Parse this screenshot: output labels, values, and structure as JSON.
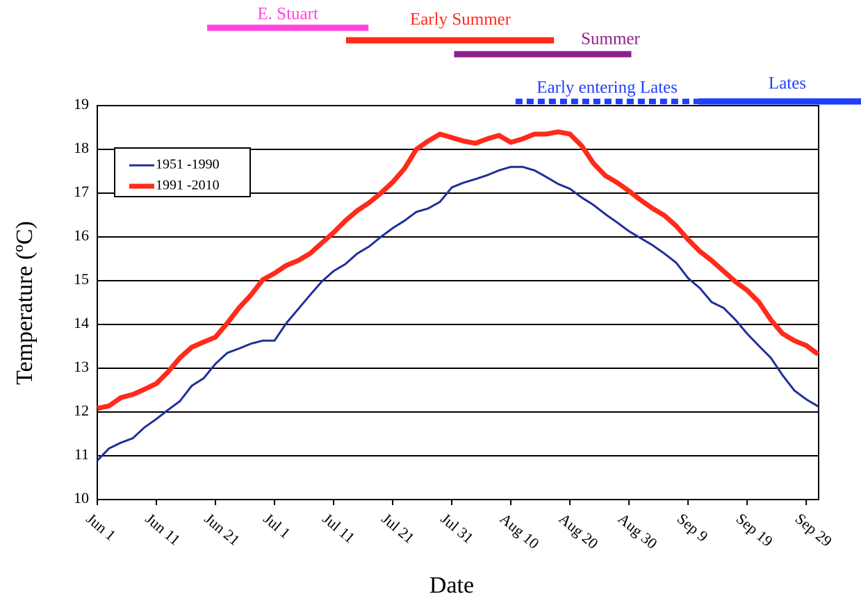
{
  "chart_data": {
    "type": "line",
    "x_label": "Date",
    "y_label": "Temperature  (ºC)",
    "x": [
      0,
      2,
      4,
      6,
      8,
      10,
      12,
      14,
      16,
      18,
      20,
      22,
      24,
      26,
      28,
      30,
      32,
      34,
      36,
      38,
      40,
      42,
      44,
      46,
      48,
      50,
      52,
      54,
      56,
      58,
      60,
      62,
      64,
      66,
      68,
      70,
      72,
      74,
      76,
      78,
      80,
      82,
      84,
      86,
      88,
      90,
      92,
      94,
      96,
      98,
      100,
      102,
      104,
      106,
      108,
      110,
      112,
      114,
      116,
      118,
      120,
      122
    ],
    "series": [
      {
        "name": "1951 -1990",
        "color": "#1f2f9a",
        "width": 3,
        "values": [
          10.89,
          11.17,
          11.3,
          11.4,
          11.65,
          11.84,
          12.05,
          12.25,
          12.6,
          12.77,
          13.1,
          13.35,
          13.45,
          13.56,
          13.63,
          13.63,
          14.03,
          14.35,
          14.67,
          14.98,
          15.22,
          15.38,
          15.62,
          15.78,
          16.0,
          16.2,
          16.37,
          16.57,
          16.65,
          16.8,
          17.13,
          17.24,
          17.32,
          17.41,
          17.52,
          17.6,
          17.6,
          17.52,
          17.37,
          17.21,
          17.1,
          16.9,
          16.73,
          16.52,
          16.33,
          16.13,
          15.97,
          15.81,
          15.62,
          15.41,
          15.06,
          14.83,
          14.51,
          14.38,
          14.11,
          13.79,
          13.51,
          13.24,
          12.84,
          12.49,
          12.29,
          12.13
        ]
      },
      {
        "name": "1991 -2010",
        "color": "#ff2a1a",
        "width": 7,
        "values": [
          12.08,
          12.14,
          12.33,
          12.4,
          12.52,
          12.65,
          12.92,
          13.24,
          13.48,
          13.6,
          13.71,
          14.03,
          14.38,
          14.67,
          15.02,
          15.17,
          15.35,
          15.46,
          15.62,
          15.86,
          16.1,
          16.37,
          16.6,
          16.78,
          17.0,
          17.25,
          17.56,
          18.0,
          18.19,
          18.35,
          18.27,
          18.19,
          18.14,
          18.24,
          18.32,
          18.16,
          18.24,
          18.35,
          18.35,
          18.4,
          18.35,
          18.08,
          17.68,
          17.4,
          17.24,
          17.05,
          16.84,
          16.65,
          16.49,
          16.25,
          15.94,
          15.67,
          15.46,
          15.22,
          14.98,
          14.78,
          14.51,
          14.11,
          13.79,
          13.63,
          13.52,
          13.32
        ]
      }
    ],
    "xlim": [
      0,
      122.1
    ],
    "xticks": [
      {
        "value": 0,
        "label": "Jun 1"
      },
      {
        "value": 10,
        "label": "Jun 11"
      },
      {
        "value": 20,
        "label": "Jun 21"
      },
      {
        "value": 30,
        "label": "Jul 1"
      },
      {
        "value": 40,
        "label": "Jul 11"
      },
      {
        "value": 50,
        "label": "Jul 21"
      },
      {
        "value": 60,
        "label": "Jul 31"
      },
      {
        "value": 70,
        "label": "Aug 10"
      },
      {
        "value": 80,
        "label": "Aug 20"
      },
      {
        "value": 90,
        "label": "Aug 30"
      },
      {
        "value": 100,
        "label": "Sep 9"
      },
      {
        "value": 110,
        "label": "Sep 19"
      },
      {
        "value": 120,
        "label": "Sep 29"
      }
    ],
    "ylim": [
      10,
      19
    ],
    "yticks": [
      10,
      11,
      12,
      13,
      14,
      15,
      16,
      17,
      18,
      19
    ],
    "grid": true,
    "legend": "upper left",
    "periods": [
      {
        "label": "E. Stuart",
        "start": 18.6,
        "end": 45.9,
        "color": "#ff44dd",
        "dashed": false
      },
      {
        "label": "Early Summer",
        "start": 42.1,
        "end": 77.3,
        "color": "#ff2a1a",
        "dashed": false
      },
      {
        "label": "Summer",
        "start": 60.4,
        "end": 90.4,
        "color": "#8e1f8a",
        "dashed": false
      },
      {
        "label": "Early entering Lates",
        "start": 70.8,
        "end": 101.8,
        "color": "#1f3fff",
        "dashed": true
      },
      {
        "label": "Lates",
        "start": 101.8,
        "end": 129.3,
        "color": "#1f3fff",
        "dashed": false
      }
    ]
  }
}
